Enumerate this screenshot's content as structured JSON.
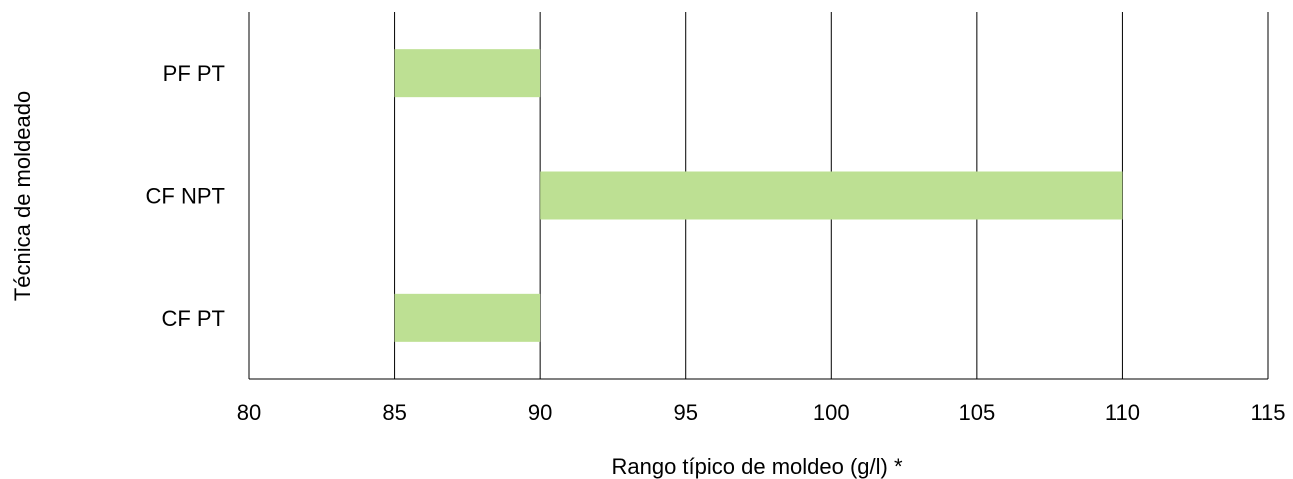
{
  "chart_data": {
    "type": "bar",
    "orientation": "horizontal-range",
    "xlabel": "Rango típico de moldeo (g/l) *",
    "ylabel": "Técnica de moldeado",
    "xlim": [
      80,
      115
    ],
    "xticks": [
      "80",
      "85",
      "90",
      "95",
      "100",
      "105",
      "110",
      "115"
    ],
    "categories": [
      "PF PT",
      "CF NPT",
      "CF PT"
    ],
    "ranges": [
      [
        85,
        90
      ],
      [
        90,
        110
      ],
      [
        85,
        90
      ]
    ],
    "grid": "vertical",
    "bar_color": "#bde093"
  }
}
